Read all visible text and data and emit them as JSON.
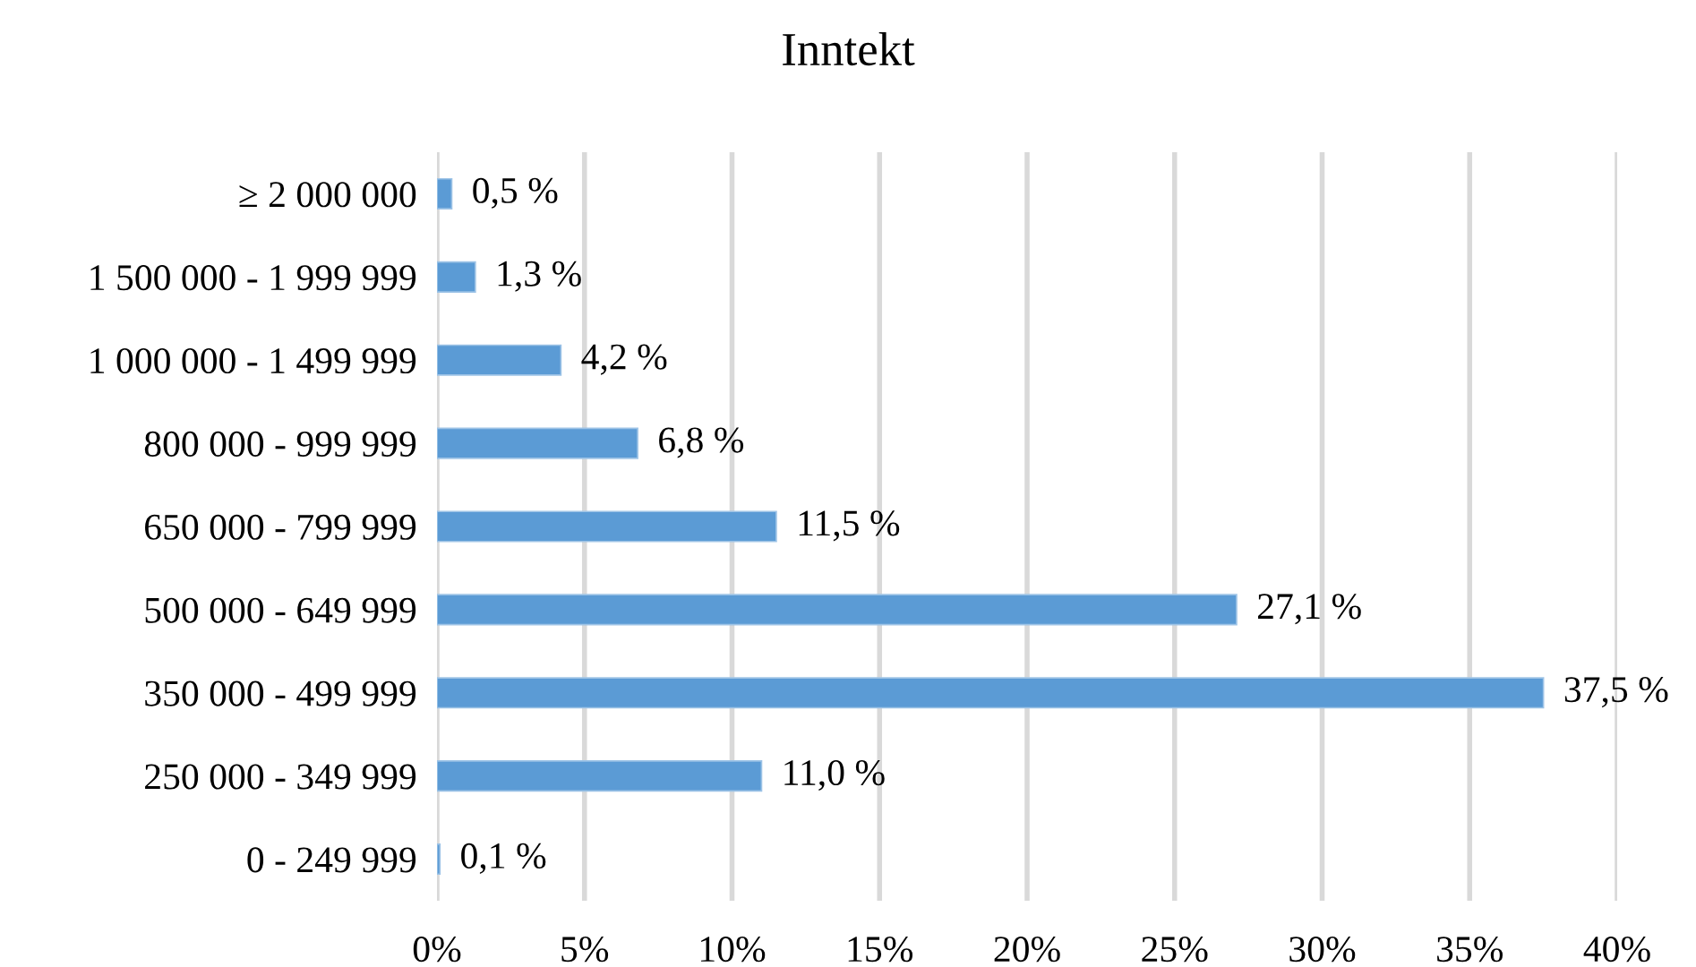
{
  "chart_data": {
    "type": "bar",
    "orientation": "horizontal",
    "title": "Inntekt",
    "categories": [
      "≥ 2 000 000",
      "1 500 000 - 1 999 999",
      "1 000 000 - 1 499 999",
      "800 000 - 999 999",
      "650 000 - 799 999",
      "500 000 - 649 999",
      "350 000 - 499 999",
      "250 000 - 349 999",
      "0 - 249 999"
    ],
    "values": [
      0.5,
      1.3,
      4.2,
      6.8,
      11.5,
      27.1,
      37.5,
      11.0,
      0.1
    ],
    "value_labels": [
      "0,5 %",
      "1,3 %",
      "4,2 %",
      "6,8 %",
      "11,5 %",
      "27,1 %",
      "37,5 %",
      "11,0 %",
      "0,1 %"
    ],
    "color": "#5b9bd5",
    "xlim": [
      0,
      40
    ],
    "xticks": [
      {
        "value": 0,
        "label": "0%"
      },
      {
        "value": 5,
        "label": "5%"
      },
      {
        "value": 10,
        "label": "10%"
      },
      {
        "value": 15,
        "label": "15%"
      },
      {
        "value": 20,
        "label": "20%"
      },
      {
        "value": 25,
        "label": "25%"
      },
      {
        "value": 30,
        "label": "30%"
      },
      {
        "value": 35,
        "label": "35%"
      },
      {
        "value": 40,
        "label": "40%"
      }
    ],
    "grid": "x"
  }
}
